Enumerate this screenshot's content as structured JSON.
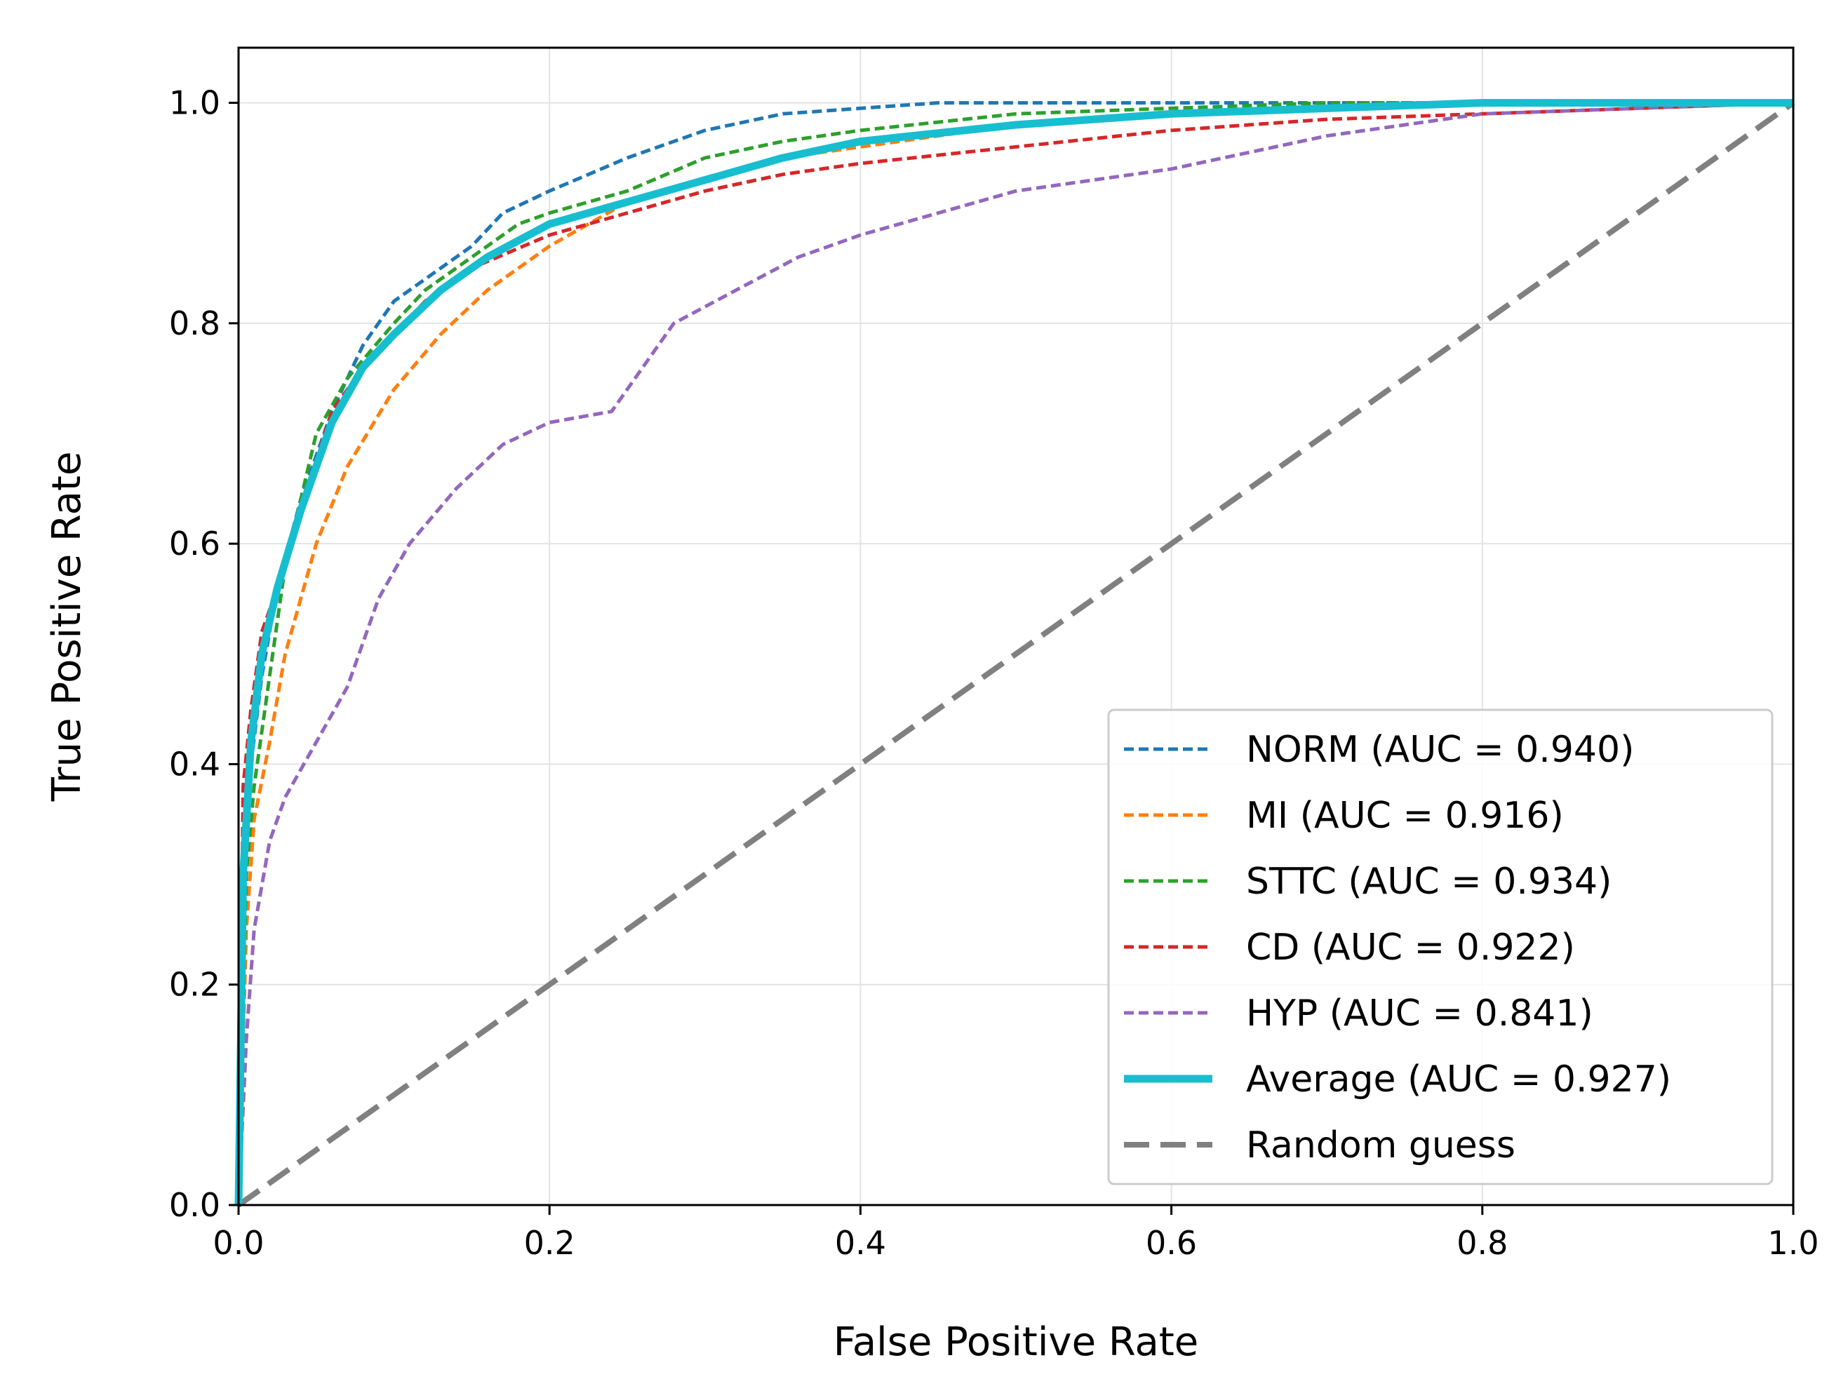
{
  "chart_data": {
    "type": "line",
    "title": "",
    "xlabel": "False Positive Rate",
    "ylabel": "True Positive Rate",
    "xlim": [
      0.0,
      1.0
    ],
    "ylim": [
      0.0,
      1.05
    ],
    "xticks": [
      "0.0",
      "0.2",
      "0.4",
      "0.6",
      "0.8",
      "1.0"
    ],
    "yticks": [
      "0.0",
      "0.2",
      "0.4",
      "0.6",
      "0.8",
      "1.0"
    ],
    "grid": true,
    "legend_position": "lower-right",
    "series": [
      {
        "name": "NORM (AUC = 0.940)",
        "color": "#1f77b4",
        "style": "dashed",
        "x": [
          0,
          0.003,
          0.008,
          0.015,
          0.025,
          0.04,
          0.06,
          0.08,
          0.1,
          0.12,
          0.15,
          0.17,
          0.2,
          0.25,
          0.3,
          0.35,
          0.4,
          0.45,
          0.5,
          0.6,
          0.7,
          0.8,
          0.9,
          1.0
        ],
        "y": [
          0,
          0.3,
          0.4,
          0.48,
          0.56,
          0.64,
          0.72,
          0.78,
          0.82,
          0.84,
          0.87,
          0.9,
          0.92,
          0.95,
          0.975,
          0.99,
          0.995,
          1.0,
          1.0,
          1.0,
          1.0,
          1.0,
          1.0,
          1.0
        ]
      },
      {
        "name": "MI (AUC = 0.916)",
        "color": "#ff7f0e",
        "style": "dashed",
        "x": [
          0,
          0.005,
          0.01,
          0.02,
          0.03,
          0.05,
          0.07,
          0.1,
          0.13,
          0.16,
          0.2,
          0.25,
          0.3,
          0.35,
          0.4,
          0.45,
          0.5,
          0.6,
          0.7,
          0.8,
          0.9,
          1.0
        ],
        "y": [
          0,
          0.25,
          0.35,
          0.42,
          0.5,
          0.6,
          0.67,
          0.74,
          0.79,
          0.83,
          0.87,
          0.91,
          0.93,
          0.95,
          0.96,
          0.97,
          0.98,
          0.99,
          0.995,
          1.0,
          1.0,
          1.0
        ]
      },
      {
        "name": "STTC (AUC = 0.934)",
        "color": "#2ca02c",
        "style": "dashed",
        "x": [
          0,
          0.005,
          0.01,
          0.02,
          0.03,
          0.04,
          0.05,
          0.07,
          0.1,
          0.12,
          0.15,
          0.18,
          0.2,
          0.25,
          0.3,
          0.35,
          0.4,
          0.5,
          0.6,
          0.7,
          0.8,
          0.9,
          1.0
        ],
        "y": [
          0,
          0.3,
          0.38,
          0.48,
          0.58,
          0.64,
          0.7,
          0.75,
          0.8,
          0.83,
          0.86,
          0.89,
          0.9,
          0.92,
          0.95,
          0.965,
          0.975,
          0.99,
          0.995,
          1.0,
          1.0,
          1.0,
          1.0
        ]
      },
      {
        "name": "CD (AUC = 0.922)",
        "color": "#d62728",
        "style": "dashed",
        "x": [
          0,
          0.003,
          0.008,
          0.015,
          0.025,
          0.04,
          0.06,
          0.08,
          0.1,
          0.12,
          0.15,
          0.2,
          0.25,
          0.3,
          0.35,
          0.4,
          0.5,
          0.6,
          0.7,
          0.8,
          0.9,
          1.0
        ],
        "y": [
          0,
          0.38,
          0.45,
          0.52,
          0.56,
          0.63,
          0.72,
          0.76,
          0.79,
          0.82,
          0.85,
          0.88,
          0.9,
          0.92,
          0.935,
          0.945,
          0.96,
          0.975,
          0.985,
          0.99,
          0.995,
          1.0
        ]
      },
      {
        "name": "HYP (AUC = 0.841)",
        "color": "#9467bd",
        "style": "dashed",
        "x": [
          0,
          0.005,
          0.01,
          0.02,
          0.03,
          0.05,
          0.07,
          0.09,
          0.11,
          0.14,
          0.17,
          0.2,
          0.24,
          0.26,
          0.28,
          0.32,
          0.36,
          0.4,
          0.45,
          0.5,
          0.55,
          0.6,
          0.7,
          0.8,
          0.9,
          1.0
        ],
        "y": [
          0,
          0.15,
          0.25,
          0.33,
          0.37,
          0.42,
          0.47,
          0.55,
          0.6,
          0.65,
          0.69,
          0.71,
          0.72,
          0.76,
          0.8,
          0.83,
          0.86,
          0.88,
          0.9,
          0.92,
          0.93,
          0.94,
          0.97,
          0.99,
          0.995,
          1.0
        ]
      },
      {
        "name": "Average (AUC = 0.927)",
        "color": "#17becf",
        "style": "solid",
        "x": [
          0,
          0.003,
          0.008,
          0.015,
          0.025,
          0.04,
          0.06,
          0.08,
          0.1,
          0.13,
          0.16,
          0.2,
          0.25,
          0.3,
          0.35,
          0.4,
          0.5,
          0.6,
          0.7,
          0.8,
          0.9,
          1.0
        ],
        "y": [
          0,
          0.3,
          0.42,
          0.5,
          0.56,
          0.63,
          0.71,
          0.76,
          0.79,
          0.83,
          0.86,
          0.89,
          0.91,
          0.93,
          0.95,
          0.965,
          0.98,
          0.99,
          0.995,
          1.0,
          1.0,
          1.0
        ]
      },
      {
        "name": "Random guess",
        "color": "#808080",
        "style": "longdash",
        "x": [
          0,
          1
        ],
        "y": [
          0,
          1
        ]
      }
    ]
  }
}
